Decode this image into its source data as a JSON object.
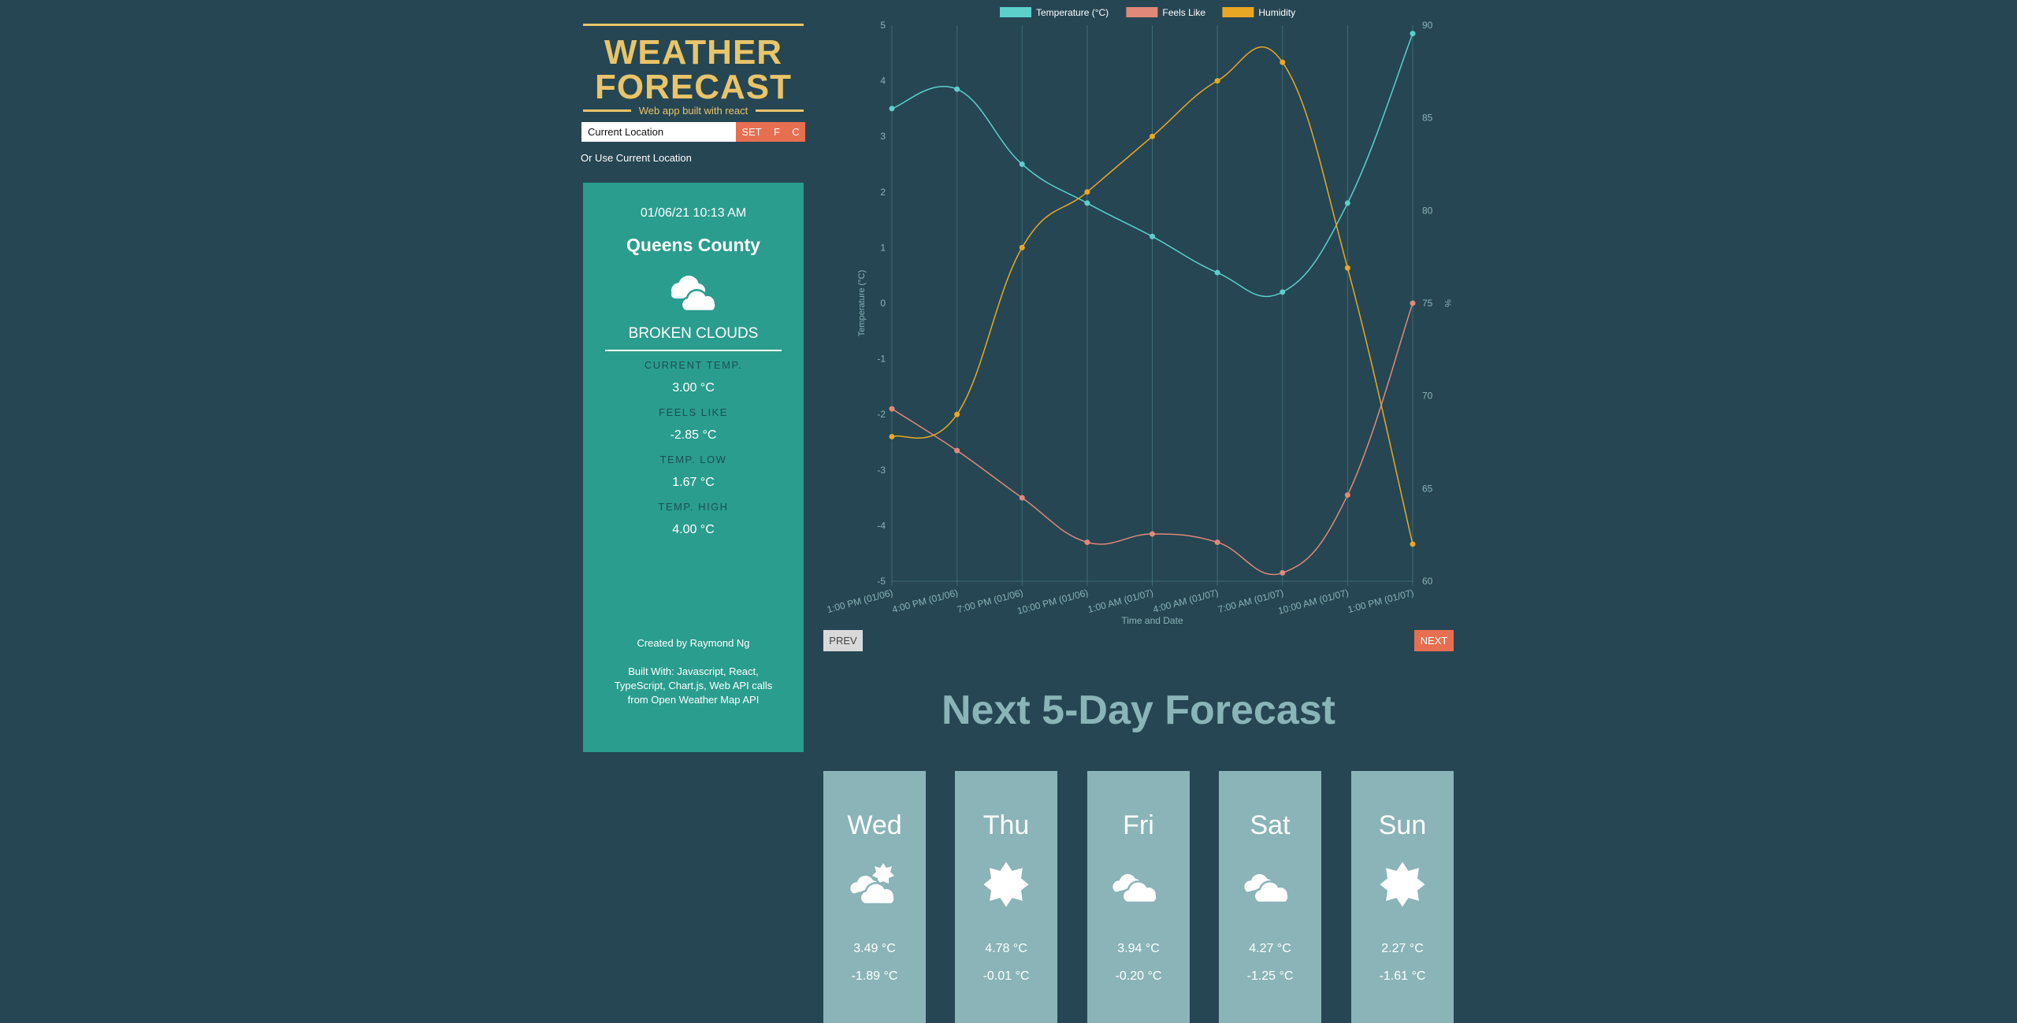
{
  "brand": {
    "title_line1": "WEATHER",
    "title_line2": "FORECAST",
    "subtitle": "Web app built with react",
    "color": "#e9c46a"
  },
  "search": {
    "value": "Current Location",
    "set_label": "SET",
    "f_label": "F",
    "c_label": "C",
    "use_location_label": "Or Use Current Location"
  },
  "current": {
    "datetime": "01/06/21 10:13 AM",
    "city": "Queens County",
    "icon": "broken-clouds-icon",
    "condition": "BROKEN CLOUDS",
    "temp_label": "CURRENT TEMP.",
    "temp": "3.00 °C",
    "feels_label": "FEELS LIKE",
    "feels": "-2.85 °C",
    "low_label": "TEMP. LOW",
    "low": "1.67 °C",
    "high_label": "TEMP. HIGH",
    "high": "4.00 °C",
    "credit": "Created by Raymond Ng",
    "built_with": "Built With: Javascript, React, TypeScript, Chart.js, Web API calls from Open Weather Map API",
    "card_color": "#2a9d8f"
  },
  "nav": {
    "prev": "PREV",
    "next": "NEXT"
  },
  "forecast": {
    "heading": "Next 5-Day Forecast",
    "days": [
      {
        "name": "Wed",
        "icon": "partly-cloudy-icon",
        "hi": "3.49 °C",
        "lo": "-1.89 °C"
      },
      {
        "name": "Thu",
        "icon": "sun-icon",
        "hi": "4.78 °C",
        "lo": "-0.01 °C"
      },
      {
        "name": "Fri",
        "icon": "clouds-icon",
        "hi": "3.94 °C",
        "lo": "-0.20 °C"
      },
      {
        "name": "Sat",
        "icon": "clouds-icon",
        "hi": "4.27 °C",
        "lo": "-1.25 °C"
      },
      {
        "name": "Sun",
        "icon": "sun-icon",
        "hi": "2.27 °C",
        "lo": "-1.61 °C"
      }
    ]
  },
  "chart_data": {
    "type": "line",
    "xlabel": "Time and Date",
    "ylabel": "Temperature (°C)",
    "y2label": "%",
    "ylim": [
      -5,
      5
    ],
    "y2lim": [
      60,
      90
    ],
    "yticks": [
      5,
      4,
      3,
      2,
      1,
      0,
      -1,
      -2,
      -3,
      -4,
      -5
    ],
    "y2ticks": [
      90,
      85,
      80,
      75,
      70,
      65,
      60
    ],
    "legend_position": "top",
    "categories": [
      "1:00 PM (01/06)",
      "4:00 PM (01/06)",
      "7:00 PM (01/06)",
      "10:00 PM (01/06)",
      "1:00 AM (01/07)",
      "4:00 AM (01/07)",
      "7:00 AM (01/07)",
      "10:00 AM (01/07)",
      "1:00 PM (01/07)"
    ],
    "series": [
      {
        "name": "Temperature (°C)",
        "axis": "left",
        "color": "#5ccfcb",
        "values": [
          3.5,
          3.85,
          2.5,
          1.8,
          1.2,
          0.55,
          0.2,
          1.8,
          4.85
        ]
      },
      {
        "name": "Feels Like",
        "axis": "left",
        "color": "#e0897a",
        "values": [
          -1.9,
          -2.65,
          -3.5,
          -4.3,
          -4.15,
          -4.3,
          -4.85,
          -3.45,
          0
        ]
      },
      {
        "name": "Humidity",
        "axis": "right",
        "color": "#e9a824",
        "values": [
          67.8,
          69,
          78,
          81,
          84,
          87,
          88,
          76.9,
          62
        ]
      }
    ]
  }
}
